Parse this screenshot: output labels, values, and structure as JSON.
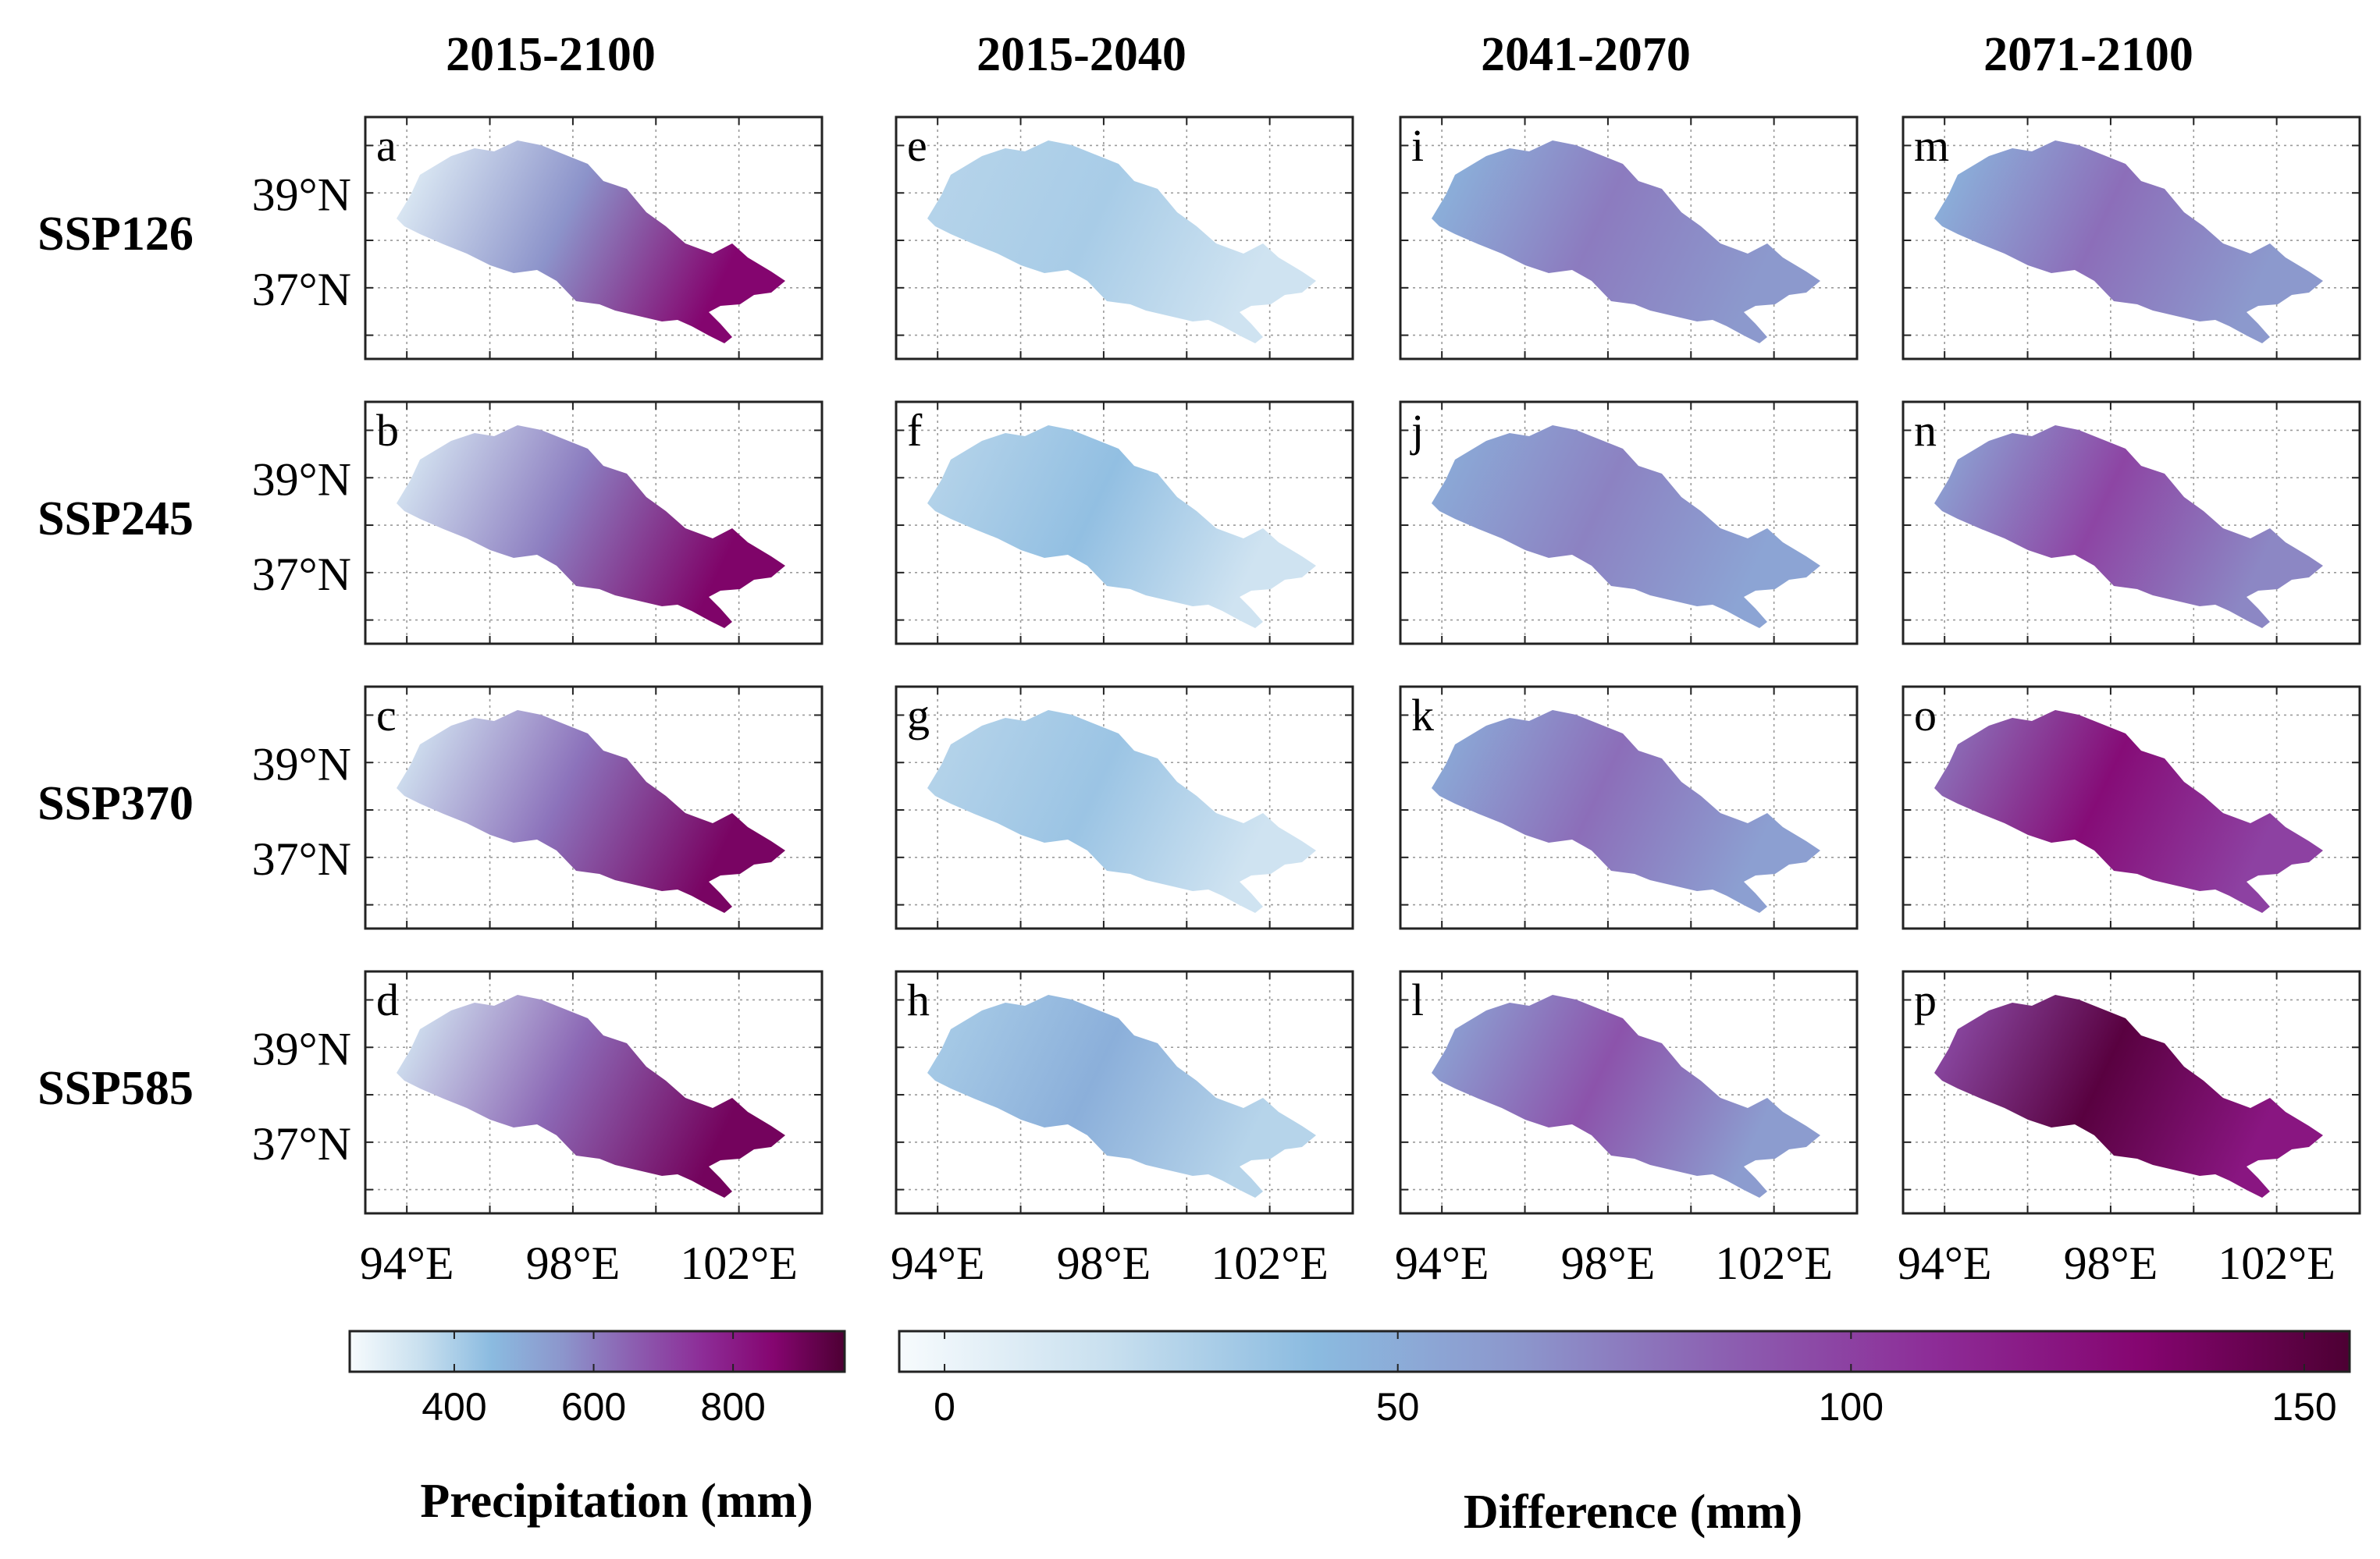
{
  "chart_data": {
    "type": "heatmap",
    "description_kind": "map-panel-grid",
    "columns": [
      "2015-2100",
      "2015-2040",
      "2041-2070",
      "2071-2100"
    ],
    "rows": [
      "SSP126",
      "SSP245",
      "SSP370",
      "SSP585"
    ],
    "panel_letters": [
      [
        "a",
        "e",
        "i",
        "m"
      ],
      [
        "b",
        "f",
        "j",
        "n"
      ],
      [
        "c",
        "g",
        "k",
        "o"
      ],
      [
        "d",
        "h",
        "l",
        "p"
      ]
    ],
    "y_ticks": [
      {
        "value": 39,
        "label": "39°N"
      },
      {
        "value": 37,
        "label": "37°N"
      }
    ],
    "x_ticks": [
      {
        "value": 94,
        "label": "94°E"
      },
      {
        "value": 98,
        "label": "98°E"
      },
      {
        "value": 102,
        "label": "102°E"
      }
    ],
    "lon_range": [
      93,
      104
    ],
    "lat_range": [
      35.5,
      40.6
    ],
    "panels": [
      {
        "row": "SSP126",
        "col": "2015-2100",
        "field": "precipitation",
        "west_value": 300,
        "center_value": 560,
        "east_value": 860
      },
      {
        "row": "SSP245",
        "col": "2015-2100",
        "field": "precipitation",
        "west_value": 320,
        "center_value": 600,
        "east_value": 870
      },
      {
        "row": "SSP370",
        "col": "2015-2100",
        "field": "precipitation",
        "west_value": 330,
        "center_value": 620,
        "east_value": 880
      },
      {
        "row": "SSP585",
        "col": "2015-2100",
        "field": "precipitation",
        "west_value": 330,
        "center_value": 640,
        "east_value": 890
      },
      {
        "row": "SSP126",
        "col": "2015-2040",
        "field": "difference",
        "west_value": 25,
        "center_value": 30,
        "east_value": 15
      },
      {
        "row": "SSP245",
        "col": "2015-2040",
        "field": "difference",
        "west_value": 25,
        "center_value": 38,
        "east_value": 15
      },
      {
        "row": "SSP370",
        "col": "2015-2040",
        "field": "difference",
        "west_value": 25,
        "center_value": 35,
        "east_value": 15
      },
      {
        "row": "SSP585",
        "col": "2015-2040",
        "field": "difference",
        "west_value": 30,
        "center_value": 48,
        "east_value": 25
      },
      {
        "row": "SSP126",
        "col": "2041-2070",
        "field": "difference",
        "west_value": 45,
        "center_value": 75,
        "east_value": 62
      },
      {
        "row": "SSP245",
        "col": "2041-2070",
        "field": "difference",
        "west_value": 50,
        "center_value": 72,
        "east_value": 55
      },
      {
        "row": "SSP370",
        "col": "2041-2070",
        "field": "difference",
        "west_value": 50,
        "center_value": 80,
        "east_value": 58
      },
      {
        "row": "SSP585",
        "col": "2041-2070",
        "field": "difference",
        "west_value": 55,
        "center_value": 92,
        "east_value": 60
      },
      {
        "row": "SSP126",
        "col": "2071-2100",
        "field": "difference",
        "west_value": 45,
        "center_value": 80,
        "east_value": 62
      },
      {
        "row": "SSP245",
        "col": "2071-2100",
        "field": "difference",
        "west_value": 55,
        "center_value": 98,
        "east_value": 70
      },
      {
        "row": "SSP370",
        "col": "2071-2100",
        "field": "difference",
        "west_value": 78,
        "center_value": 128,
        "east_value": 100
      },
      {
        "row": "SSP585",
        "col": "2071-2100",
        "field": "difference",
        "west_value": 95,
        "center_value": 150,
        "east_value": 122
      }
    ],
    "colorbars": [
      {
        "name": "precipitation",
        "label": "Precipitation (mm)",
        "range": [
          250,
          960
        ],
        "ticks": [
          400,
          600,
          800
        ]
      },
      {
        "name": "difference",
        "label": "Difference (mm)",
        "range": [
          -5,
          155
        ],
        "ticks": [
          0,
          50,
          100,
          150
        ]
      }
    ],
    "colormap": [
      "#f7fbfd",
      "#c9e0ef",
      "#8bbbe0",
      "#8c96cc",
      "#8c5fb1",
      "#8d2c97",
      "#850570",
      "#4d0033"
    ]
  }
}
